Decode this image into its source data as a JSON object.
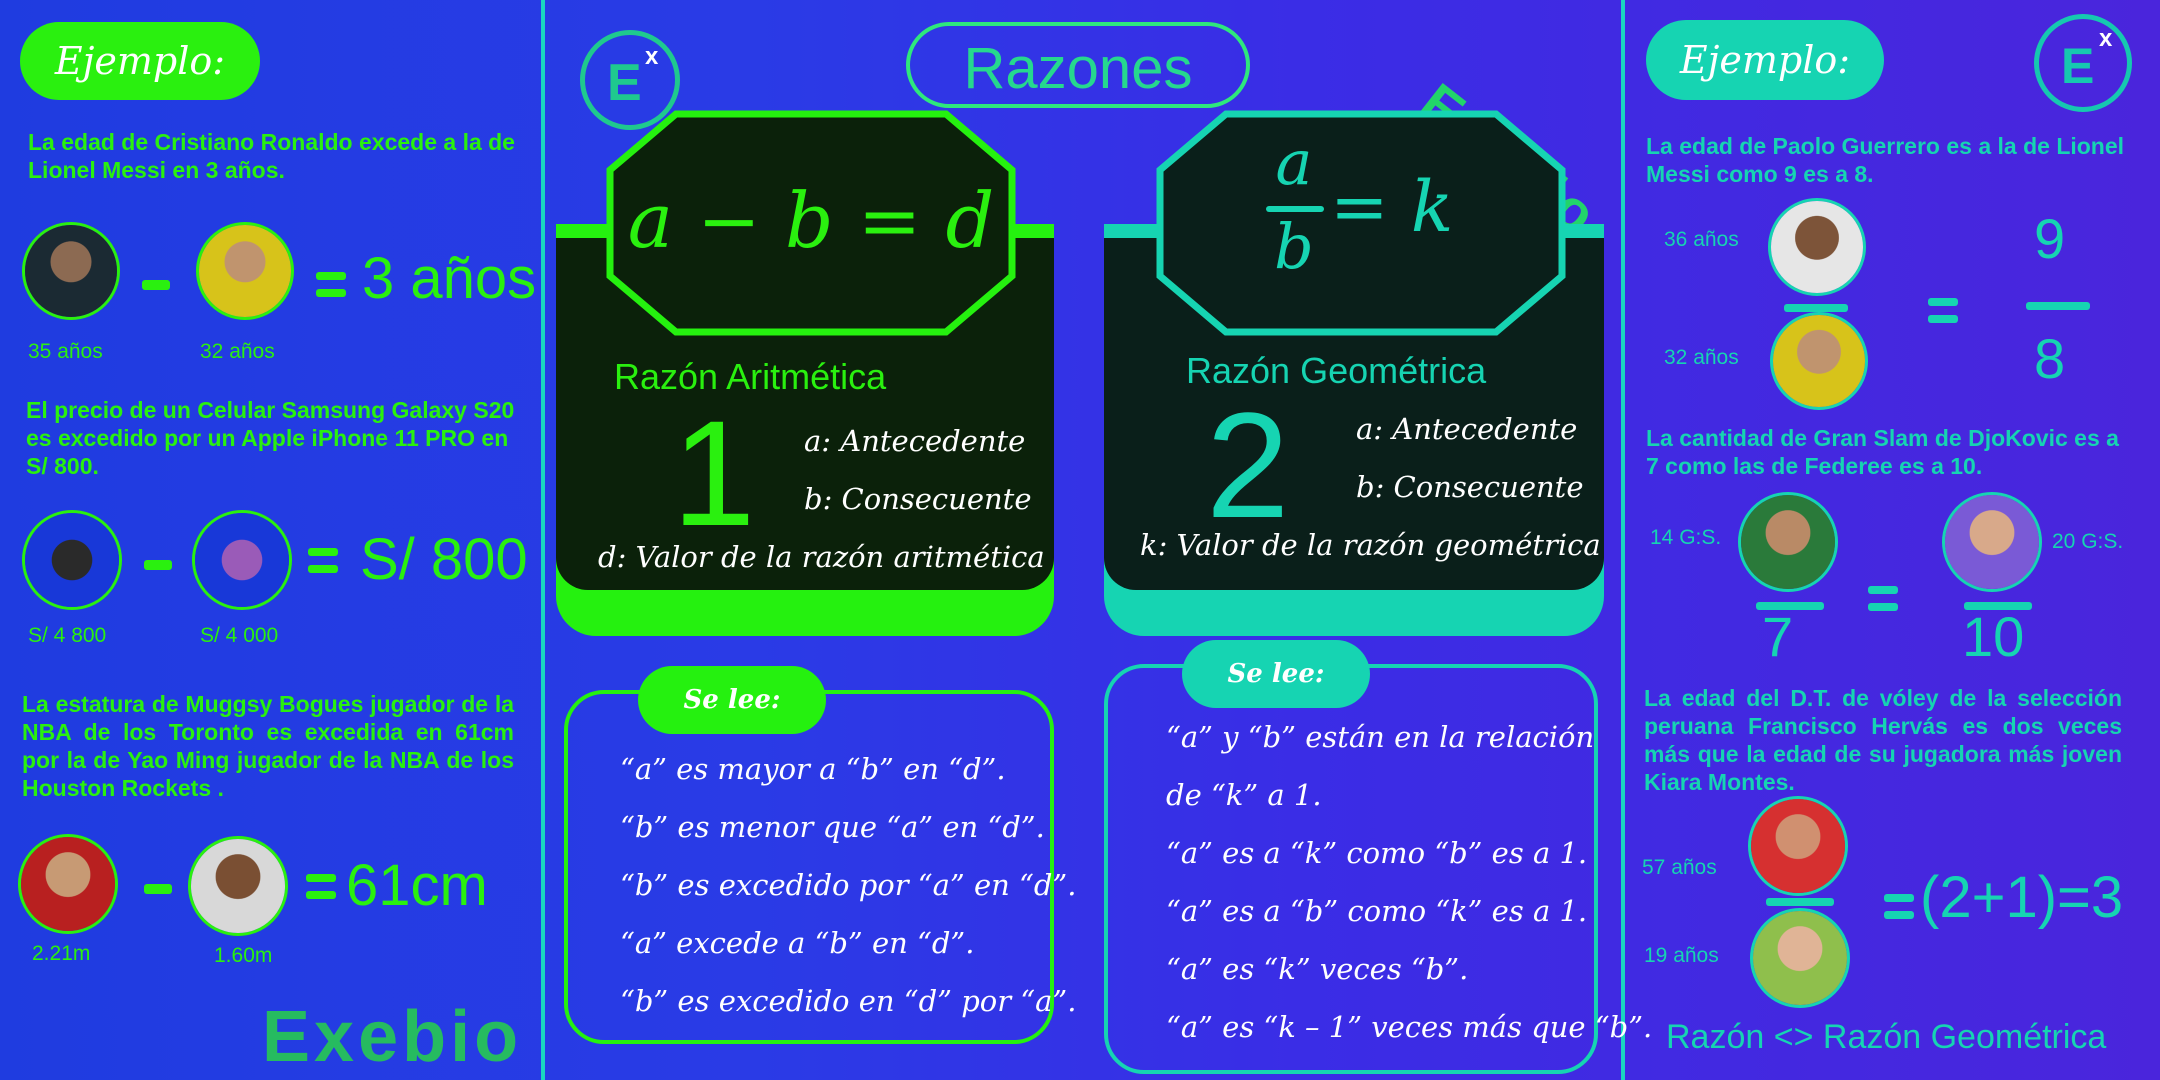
{
  "left": {
    "pill": "Ejemplo:",
    "ex1": {
      "text": "La edad de Cristiano Ronaldo excede a la de Lionel Messi en 3 años.",
      "cap_a": "35 años",
      "cap_b": "32 años",
      "result": "3 años"
    },
    "ex2": {
      "text": "El precio de un Celular Samsung Galaxy S20 es excedido por un Apple iPhone 11 PRO  en S/ 800.",
      "cap_a": "S/ 4 800",
      "cap_b": "S/ 4 000",
      "result": "S/ 800"
    },
    "ex3": {
      "text": "La estatura de Muggsy Bogues jugador de la NBA de los Toronto  es excedida en 61cm por la  de Yao Ming jugador de la NBA de los Houston Rockets .",
      "cap_a": "2.21m",
      "cap_b": "1.60m",
      "result": "61cm"
    },
    "brand": "Exebio"
  },
  "center": {
    "title": "Razones",
    "brand": "Exebio",
    "arith": {
      "formula": "a − b = d",
      "label": "Razón Aritmética",
      "number": "1",
      "def_a": "a: Antecedente",
      "def_b": "b: Consecuente",
      "def_c": "d: Valor de la razón aritmética",
      "read_pill": "Se lee:",
      "reads": [
        "“a” es mayor a “b” en “d”.",
        "“b” es menor que “a” en “d”.",
        "“b” es excedido por “a” en “d”.",
        "“a” excede a “b” en “d”.",
        "“b” es excedido en “d” por “a”."
      ]
    },
    "geo": {
      "formula_num": "a",
      "formula_den": "b",
      "formula_rhs": "= k",
      "label": "Razón Geométrica",
      "number": "2",
      "def_a": "a: Antecedente",
      "def_b": "b: Consecuente",
      "def_c": "k: Valor de la razón geométrica",
      "read_pill": "Se lee:",
      "reads": [
        "“a”  y “b” están en la relación",
        "de “k” a 1.",
        "“a” es a “k” como “b” es a 1.",
        "“a” es a “b” como “k” es a 1.",
        "“a” es “k” veces “b”.",
        "“a” es “k – 1” veces más que “b”."
      ]
    }
  },
  "right": {
    "pill": "Ejemplo:",
    "ex1": {
      "text": "La edad de Paolo Guerrero es a la de Lionel Messi como 9 es a 8.",
      "cap_a": "36 años",
      "cap_b": "32 años",
      "num": "9",
      "den": "8"
    },
    "ex2": {
      "text": "La cantidad de Gran Slam de DjoKovic es a 7 como las de Federee es a 10.",
      "cap_a": "14 G:S.",
      "cap_b": "20 G:S.",
      "num_a": "7",
      "num_b": "10"
    },
    "ex3": {
      "text": "La edad del D.T. de vóley de la selección peruana Francisco Hervás es dos veces más que la edad de su jugadora más joven Kiara Montes.",
      "cap_a": "57 años",
      "cap_b": "19 años",
      "result": "(2+1)=3"
    },
    "footer": "Razón <> Razón Geométrica"
  },
  "colors": {
    "green": "#2af00f",
    "teal": "#16d4b2",
    "dark": "#0b210a"
  }
}
